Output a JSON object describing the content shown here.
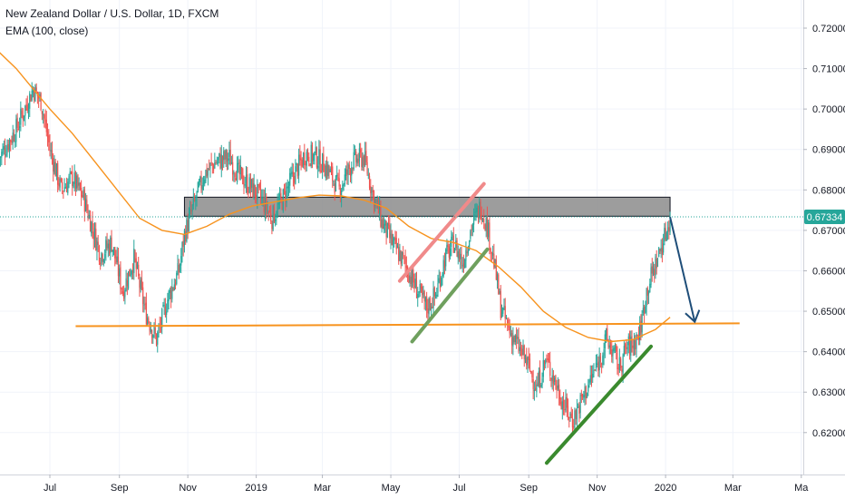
{
  "legend": {
    "title": "New Zealand Dollar / U.S. Dollar, 1D, FXCM",
    "indicator": "EMA (100, close)"
  },
  "price_tag": "0.67334",
  "colors": {
    "up": "#26a69a",
    "down": "#ef5350",
    "ema": "#f7931e",
    "support": "#f7931e",
    "zone_fill": "#8c8c8c",
    "trend_green": "#3a8a2e",
    "trend_green_light": "#6fa05e",
    "trend_pink": "#f08a8a",
    "arrow": "#1f4e79",
    "price_line": "#26a69a",
    "price_tag_bg": "#26a69a",
    "axis_text": "#131722"
  },
  "chart_data": {
    "type": "candlestick",
    "title": "New Zealand Dollar / U.S. Dollar, 1D, FXCM",
    "indicator": "EMA (100, close)",
    "x_tick_labels": [
      "Jul",
      "Sep",
      "Nov",
      "2019",
      "Mar",
      "May",
      "Jul",
      "Sep",
      "Nov",
      "2020",
      "Mar",
      "Ma"
    ],
    "x_tick_days": [
      0,
      62,
      123,
      184,
      243,
      304,
      365,
      427,
      488,
      549,
      609,
      670
    ],
    "y_tick_labels": [
      "0.72000",
      "0.71000",
      "0.70000",
      "0.69000",
      "0.68000",
      "0.67000",
      "0.66000",
      "0.65000",
      "0.64000",
      "0.63000",
      "0.62000"
    ],
    "ylim": [
      0.6105,
      0.7265
    ],
    "last_price": 0.67334,
    "price_path": [
      [
        -45,
        0.688
      ],
      [
        -30,
        0.695
      ],
      [
        -15,
        0.705
      ],
      [
        -8,
        0.702
      ],
      [
        0,
        0.69
      ],
      [
        10,
        0.68
      ],
      [
        20,
        0.683
      ],
      [
        30,
        0.678
      ],
      [
        45,
        0.664
      ],
      [
        55,
        0.667
      ],
      [
        65,
        0.655
      ],
      [
        75,
        0.663
      ],
      [
        85,
        0.65
      ],
      [
        95,
        0.643
      ],
      [
        105,
        0.653
      ],
      [
        115,
        0.66
      ],
      [
        120,
        0.669
      ],
      [
        128,
        0.676
      ],
      [
        138,
        0.684
      ],
      [
        148,
        0.687
      ],
      [
        160,
        0.688
      ],
      [
        168,
        0.684
      ],
      [
        178,
        0.681
      ],
      [
        188,
        0.678
      ],
      [
        198,
        0.673
      ],
      [
        208,
        0.678
      ],
      [
        218,
        0.684
      ],
      [
        228,
        0.689
      ],
      [
        238,
        0.688
      ],
      [
        248,
        0.685
      ],
      [
        258,
        0.68
      ],
      [
        270,
        0.687
      ],
      [
        280,
        0.688
      ],
      [
        288,
        0.679
      ],
      [
        296,
        0.672
      ],
      [
        305,
        0.667
      ],
      [
        316,
        0.662
      ],
      [
        326,
        0.656
      ],
      [
        336,
        0.651
      ],
      [
        344,
        0.654
      ],
      [
        352,
        0.663
      ],
      [
        360,
        0.667
      ],
      [
        368,
        0.662
      ],
      [
        376,
        0.671
      ],
      [
        384,
        0.676
      ],
      [
        390,
        0.671
      ],
      [
        396,
        0.662
      ],
      [
        402,
        0.651
      ],
      [
        410,
        0.645
      ],
      [
        418,
        0.641
      ],
      [
        426,
        0.637
      ],
      [
        434,
        0.631
      ],
      [
        442,
        0.638
      ],
      [
        450,
        0.633
      ],
      [
        458,
        0.627
      ],
      [
        466,
        0.623
      ],
      [
        474,
        0.628
      ],
      [
        482,
        0.633
      ],
      [
        490,
        0.638
      ],
      [
        496,
        0.643
      ],
      [
        502,
        0.64
      ],
      [
        508,
        0.636
      ],
      [
        514,
        0.641
      ],
      [
        520,
        0.642
      ],
      [
        526,
        0.645
      ],
      [
        532,
        0.655
      ],
      [
        538,
        0.66
      ],
      [
        544,
        0.665
      ],
      [
        550,
        0.67
      ],
      [
        553,
        0.6733
      ]
    ],
    "ema_path": [
      [
        -45,
        0.714
      ],
      [
        -30,
        0.71
      ],
      [
        -15,
        0.705
      ],
      [
        0,
        0.7
      ],
      [
        20,
        0.694
      ],
      [
        40,
        0.687
      ],
      [
        60,
        0.68
      ],
      [
        80,
        0.673
      ],
      [
        100,
        0.67
      ],
      [
        120,
        0.669
      ],
      [
        140,
        0.671
      ],
      [
        160,
        0.674
      ],
      [
        180,
        0.676
      ],
      [
        200,
        0.677
      ],
      [
        220,
        0.678
      ],
      [
        240,
        0.6787
      ],
      [
        260,
        0.6785
      ],
      [
        280,
        0.6775
      ],
      [
        300,
        0.6755
      ],
      [
        320,
        0.671
      ],
      [
        340,
        0.668
      ],
      [
        360,
        0.667
      ],
      [
        380,
        0.665
      ],
      [
        400,
        0.661
      ],
      [
        420,
        0.656
      ],
      [
        440,
        0.65
      ],
      [
        460,
        0.646
      ],
      [
        480,
        0.6435
      ],
      [
        500,
        0.6425
      ],
      [
        520,
        0.643
      ],
      [
        540,
        0.6455
      ],
      [
        553,
        0.6485
      ]
    ],
    "resistance_zone": {
      "day_start": 120,
      "day_end": 553,
      "y_low": 0.6735,
      "y_high": 0.6782
    },
    "support_line": {
      "day_start": 23,
      "day_end": 615,
      "y_start": 0.6463,
      "y_end": 0.647
    },
    "green_trendline_2019": {
      "from": [
        323,
        0.6425
      ],
      "to": [
        390,
        0.6653
      ]
    },
    "pink_trendline_2019": {
      "from": [
        312,
        0.6575
      ],
      "to": [
        387,
        0.6815
      ]
    },
    "green_trendline_late": {
      "from": [
        443,
        0.6125
      ],
      "to": [
        536,
        0.6413
      ]
    },
    "projection_arrow": {
      "from": [
        553,
        0.6733
      ],
      "to": [
        575,
        0.6474
      ]
    }
  }
}
